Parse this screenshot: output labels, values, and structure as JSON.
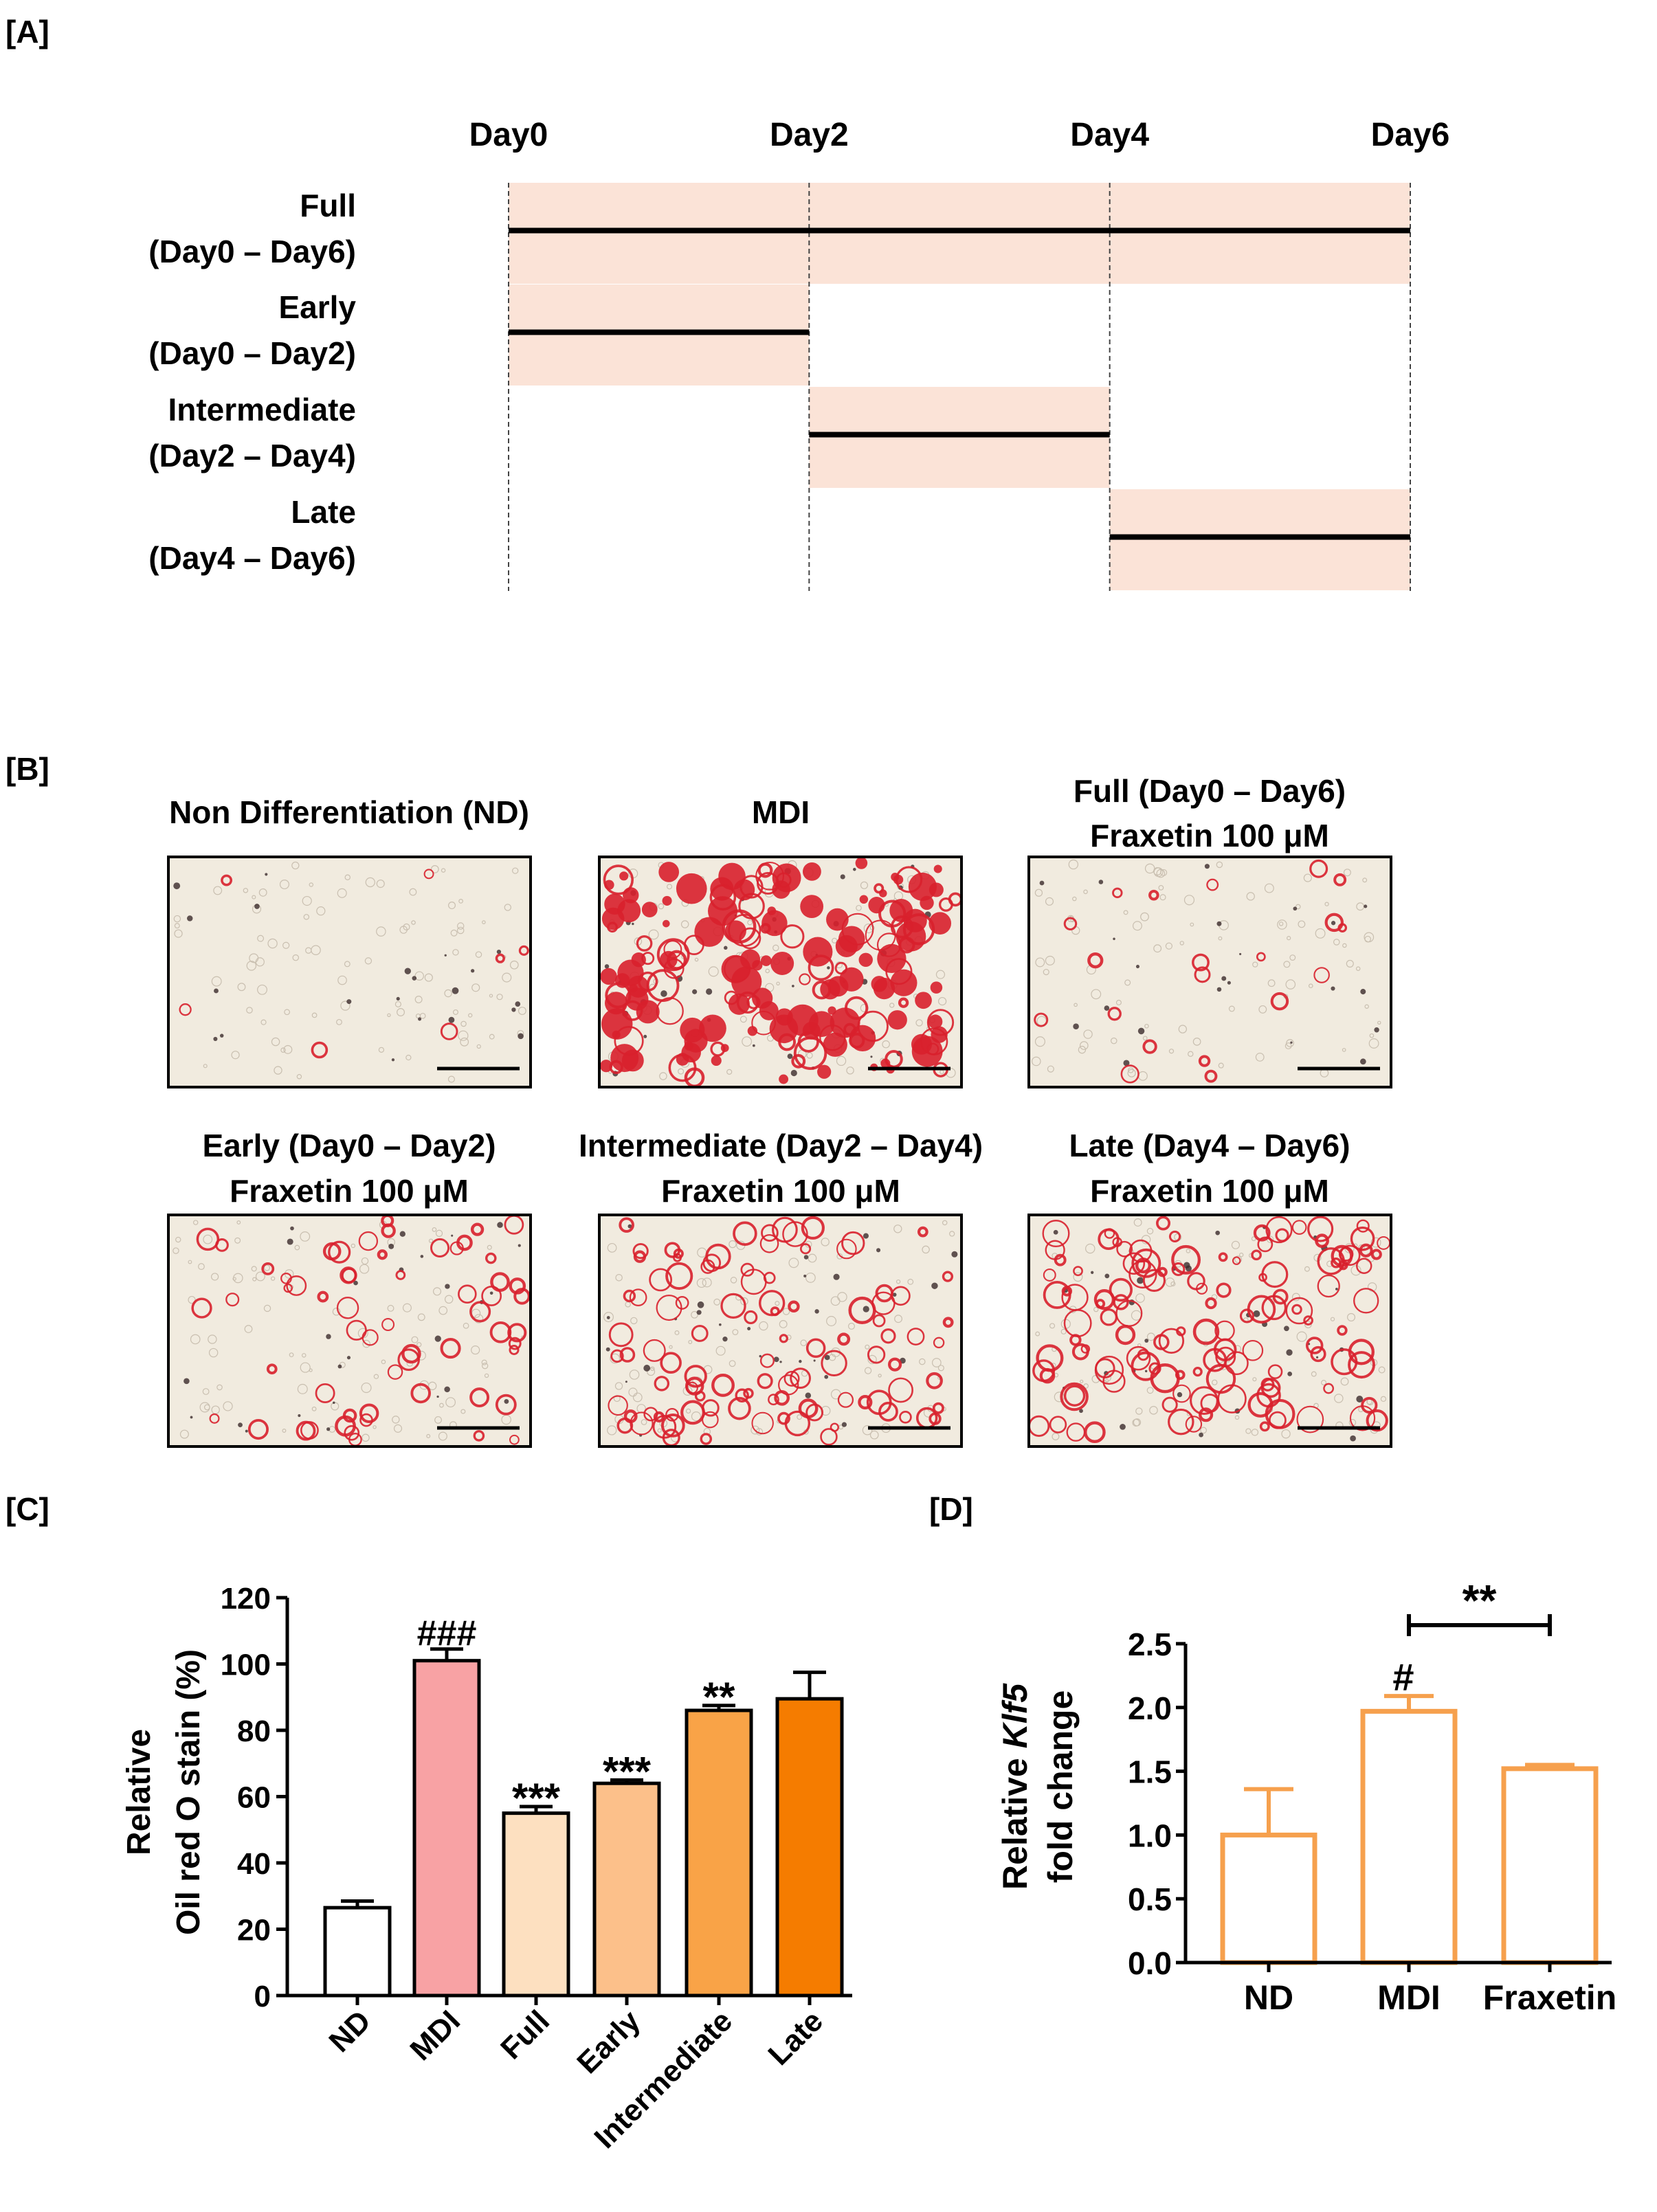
{
  "panels": {
    "A": "[A]",
    "B": "[B]",
    "C": "[C]",
    "D": "[D]"
  },
  "timeline": {
    "days": [
      "Day0",
      "Day2",
      "Day4",
      "Day6"
    ],
    "rows": [
      {
        "name": "Full",
        "range": "(Day0 – Day6)",
        "start": 0,
        "end": 6
      },
      {
        "name": "Early",
        "range": "(Day0 – Day2)",
        "start": 0,
        "end": 2
      },
      {
        "name": "Intermediate",
        "range": "(Day2 – Day4)",
        "start": 2,
        "end": 4
      },
      {
        "name": "Late",
        "range": "(Day4 – Day6)",
        "start": 4,
        "end": 6
      }
    ],
    "shade_color": "#fbe3d7"
  },
  "micrographs": [
    {
      "title1": "Non Differentiation (ND)",
      "title2": "",
      "stain": 0.04
    },
    {
      "title1": "MDI",
      "title2": "",
      "stain": 1.0
    },
    {
      "title1": "Full (Day0 – Day6)",
      "title2": "Fraxetin 100 μM",
      "stain": 0.12
    },
    {
      "title1": "Early (Day0 – Day2)",
      "title2": "Fraxetin 100 μM",
      "stain": 0.35
    },
    {
      "title1": "Intermediate (Day2 – Day4)",
      "title2": "Fraxetin 100 μM",
      "stain": 0.6
    },
    {
      "title1": "Late (Day4 – Day6)",
      "title2": "Fraxetin 100 μM",
      "stain": 0.75
    }
  ],
  "chart_data": [
    {
      "type": "bar",
      "panel": "C",
      "categories": [
        "ND",
        "MDI",
        "Full",
        "Early",
        "Intermediate",
        "Late"
      ],
      "values": [
        26.5,
        101,
        55,
        64,
        86,
        89.5
      ],
      "errors": [
        2,
        3.5,
        2,
        1,
        1.5,
        8
      ],
      "significance": [
        "",
        "###",
        "***",
        "***",
        "**",
        ""
      ],
      "colors": [
        "#ffffff",
        "#f8a2a4",
        "#fde0c0",
        "#fcc08a",
        "#f9a347",
        "#f57c00"
      ],
      "title": "",
      "xlabel": "",
      "ylabel_line1": "Relative",
      "ylabel_line2": "Oil red O stain (%)",
      "ylim": [
        0,
        120
      ],
      "yticks": [
        0,
        20,
        40,
        60,
        80,
        100,
        120
      ]
    },
    {
      "type": "bar",
      "panel": "D",
      "categories": [
        "ND",
        "MDI",
        "Fraxetin"
      ],
      "values": [
        1.0,
        1.97,
        1.52
      ],
      "errors": [
        0.36,
        0.12,
        0.03
      ],
      "significance": [
        "",
        "#",
        ""
      ],
      "comparison": {
        "from": "MDI",
        "to": "Fraxetin",
        "label": "**"
      },
      "bar_color": "#f6a04d",
      "title": "",
      "xlabel": "",
      "ylabel_line1_prefix": "Relative ",
      "ylabel_line1_gene": "Klf5",
      "ylabel_line2": "fold change",
      "ylim": [
        0,
        2.5
      ],
      "yticks": [
        "0.0",
        "0.5",
        "1.0",
        "1.5",
        "2.0",
        "2.5"
      ]
    }
  ]
}
